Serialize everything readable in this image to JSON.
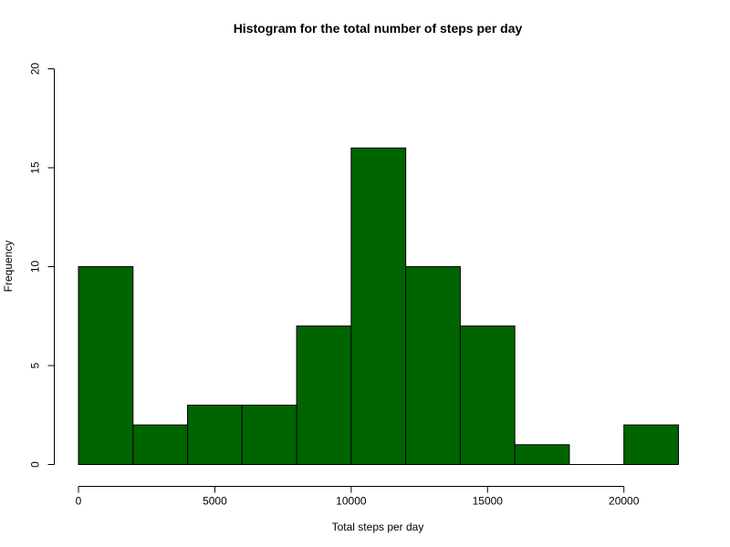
{
  "chart_data": {
    "type": "bar",
    "title": "Histogram for the total number of steps per day",
    "xlabel": "Total steps per day",
    "ylabel": "Frequency",
    "bins": [
      {
        "start": 0,
        "end": 2000,
        "value": 10
      },
      {
        "start": 2000,
        "end": 4000,
        "value": 2
      },
      {
        "start": 4000,
        "end": 6000,
        "value": 3
      },
      {
        "start": 6000,
        "end": 8000,
        "value": 3
      },
      {
        "start": 8000,
        "end": 10000,
        "value": 7
      },
      {
        "start": 10000,
        "end": 12000,
        "value": 16
      },
      {
        "start": 12000,
        "end": 14000,
        "value": 10
      },
      {
        "start": 14000,
        "end": 16000,
        "value": 7
      },
      {
        "start": 16000,
        "end": 18000,
        "value": 1
      },
      {
        "start": 18000,
        "end": 20000,
        "value": 0
      },
      {
        "start": 20000,
        "end": 22000,
        "value": 2
      }
    ],
    "xlim": [
      0,
      22000
    ],
    "ylim": [
      0,
      20
    ],
    "xticks": [
      0,
      5000,
      10000,
      15000,
      20000
    ],
    "yticks": [
      0,
      5,
      10,
      15,
      20
    ],
    "grid": false,
    "bar_color": "#006400",
    "border_color": "#000000"
  }
}
